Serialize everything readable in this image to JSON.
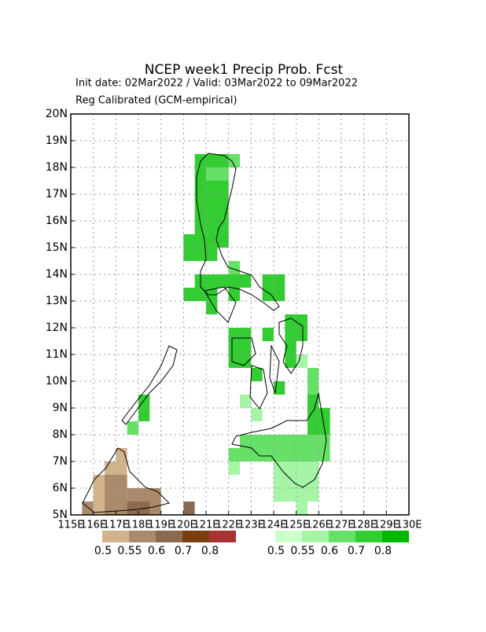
{
  "title": "NCEP  week1  Precip  Prob.  Fcst",
  "subtitle": "Init date: 02Mar2022 / Valid: 03Mar2022 to 09Mar2022",
  "method": "Reg Calibrated (GCM-empirical)",
  "lon_range": [
    115,
    130
  ],
  "lat_range": [
    5,
    20
  ],
  "lon_ticks": [
    {
      "value": 115,
      "label": "115E"
    },
    {
      "value": 116,
      "label": "116E"
    },
    {
      "value": 117,
      "label": "117E"
    },
    {
      "value": 118,
      "label": "118E"
    },
    {
      "value": 119,
      "label": "119E"
    },
    {
      "value": 120,
      "label": "120E"
    },
    {
      "value": 121,
      "label": "121E"
    },
    {
      "value": 122,
      "label": "122E"
    },
    {
      "value": 123,
      "label": "123E"
    },
    {
      "value": 124,
      "label": "124E"
    },
    {
      "value": 125,
      "label": "125E"
    },
    {
      "value": 126,
      "label": "126E"
    },
    {
      "value": 127,
      "label": "127E"
    },
    {
      "value": 128,
      "label": "128E"
    },
    {
      "value": 129,
      "label": "129E"
    },
    {
      "value": 130,
      "label": "130E"
    }
  ],
  "lat_ticks": [
    {
      "value": 5,
      "label": "5N"
    },
    {
      "value": 6,
      "label": "6N"
    },
    {
      "value": 7,
      "label": "7N"
    },
    {
      "value": 8,
      "label": "8N"
    },
    {
      "value": 9,
      "label": "9N"
    },
    {
      "value": 10,
      "label": "10N"
    },
    {
      "value": 11,
      "label": "11N"
    },
    {
      "value": 12,
      "label": "12N"
    },
    {
      "value": 13,
      "label": "13N"
    },
    {
      "value": 14,
      "label": "14N"
    },
    {
      "value": 15,
      "label": "15N"
    },
    {
      "value": 16,
      "label": "16N"
    },
    {
      "value": 17,
      "label": "17N"
    },
    {
      "value": 18,
      "label": "18N"
    },
    {
      "value": 19,
      "label": "19N"
    },
    {
      "value": 20,
      "label": "20N"
    }
  ],
  "dry_legend": {
    "thresholds": [
      0.5,
      0.55,
      0.6,
      0.7,
      0.8
    ],
    "colors": [
      "#d2b48c",
      "#a98a6a",
      "#8b6a4f",
      "#7a3f10",
      "#a83232"
    ]
  },
  "wet_legend": {
    "thresholds": [
      0.5,
      0.55,
      0.6,
      0.7,
      0.8
    ],
    "colors": [
      "#ccffcc",
      "#a6f5a6",
      "#66e066",
      "#33cc33",
      "#00b800"
    ]
  },
  "wet_areas": [
    {
      "lon": [
        120.5,
        122
      ],
      "lat": [
        15,
        18.5
      ],
      "value": 0.7
    },
    {
      "lon": [
        121,
        122
      ],
      "lat": [
        17.5,
        18
      ],
      "value": 0.6
    },
    {
      "lon": [
        122,
        122.5
      ],
      "lat": [
        18,
        18.5
      ],
      "value": 0.6
    },
    {
      "lon": [
        120,
        121.5
      ],
      "lat": [
        14.5,
        15.5
      ],
      "value": 0.7
    },
    {
      "lon": [
        120.5,
        122.5
      ],
      "lat": [
        13.5,
        14
      ],
      "value": 0.7
    },
    {
      "lon": [
        122,
        122.5
      ],
      "lat": [
        14,
        14.5
      ],
      "value": 0.6
    },
    {
      "lon": [
        120,
        121.5
      ],
      "lat": [
        13,
        13.5
      ],
      "value": 0.7
    },
    {
      "lon": [
        121,
        121.5
      ],
      "lat": [
        12.5,
        13
      ],
      "value": 0.7
    },
    {
      "lon": [
        122,
        122.5
      ],
      "lat": [
        13,
        13.5
      ],
      "value": 0.7
    },
    {
      "lon": [
        122.5,
        123
      ],
      "lat": [
        13.5,
        14
      ],
      "value": 0.7
    },
    {
      "lon": [
        123.5,
        124.5
      ],
      "lat": [
        13,
        14
      ],
      "value": 0.7
    },
    {
      "lon": [
        122,
        123
      ],
      "lat": [
        10.5,
        12
      ],
      "value": 0.7
    },
    {
      "lon": [
        123,
        123.5
      ],
      "lat": [
        10,
        10.5
      ],
      "value": 0.7
    },
    {
      "lon": [
        123.5,
        124
      ],
      "lat": [
        11.5,
        12
      ],
      "value": 0.7
    },
    {
      "lon": [
        124.5,
        125.5
      ],
      "lat": [
        11.5,
        12.5
      ],
      "value": 0.7
    },
    {
      "lon": [
        124.5,
        125
      ],
      "lat": [
        10.5,
        11.5
      ],
      "value": 0.7
    },
    {
      "lon": [
        125,
        125.5
      ],
      "lat": [
        10.5,
        11
      ],
      "value": 0.55
    },
    {
      "lon": [
        124,
        124.5
      ],
      "lat": [
        9.5,
        10
      ],
      "value": 0.7
    },
    {
      "lon": [
        125.5,
        126
      ],
      "lat": [
        9.5,
        10.5
      ],
      "value": 0.6
    },
    {
      "lon": [
        122.5,
        123
      ],
      "lat": [
        9,
        9.5
      ],
      "value": 0.55
    },
    {
      "lon": [
        123,
        123.5
      ],
      "lat": [
        8.5,
        9
      ],
      "value": 0.55
    },
    {
      "lon": [
        122.5,
        126.5
      ],
      "lat": [
        7,
        8
      ],
      "value": 0.6
    },
    {
      "lon": [
        125.5,
        126.5
      ],
      "lat": [
        8,
        9
      ],
      "value": 0.7
    },
    {
      "lon": [
        125.5,
        126
      ],
      "lat": [
        9,
        9.5
      ],
      "value": 0.7
    },
    {
      "lon": [
        122,
        122.5
      ],
      "lat": [
        7,
        7.5
      ],
      "value": 0.6
    },
    {
      "lon": [
        122,
        122.5
      ],
      "lat": [
        6.5,
        7
      ],
      "value": 0.55
    },
    {
      "lon": [
        124,
        126
      ],
      "lat": [
        5.5,
        7
      ],
      "value": 0.55
    },
    {
      "lon": [
        125,
        125.5
      ],
      "lat": [
        5,
        5.5
      ],
      "value": 0.55
    },
    {
      "lon": [
        118,
        118.5
      ],
      "lat": [
        8.5,
        9.5
      ],
      "value": 0.7
    },
    {
      "lon": [
        117.5,
        118
      ],
      "lat": [
        8,
        8.5
      ],
      "value": 0.6
    }
  ],
  "dry_areas": [
    {
      "lon": [
        116,
        116.5
      ],
      "lat": [
        5,
        6.5
      ],
      "value": 0.5
    },
    {
      "lon": [
        116.5,
        117.5
      ],
      "lat": [
        5,
        6.5
      ],
      "value": 0.55
    },
    {
      "lon": [
        116.5,
        117
      ],
      "lat": [
        6.5,
        7
      ],
      "value": 0.5
    },
    {
      "lon": [
        117,
        117.5
      ],
      "lat": [
        6.5,
        7.5
      ],
      "value": 0.5
    },
    {
      "lon": [
        117.5,
        119
      ],
      "lat": [
        5,
        6
      ],
      "value": 0.55
    },
    {
      "lon": [
        115.5,
        116
      ],
      "lat": [
        5,
        5.5
      ],
      "value": 0.55
    },
    {
      "lon": [
        117.5,
        118.5
      ],
      "lat": [
        5,
        5.5
      ],
      "value": 0.6
    },
    {
      "lon": [
        120,
        120.5
      ],
      "lat": [
        5,
        5.5
      ],
      "value": 0.6
    }
  ]
}
